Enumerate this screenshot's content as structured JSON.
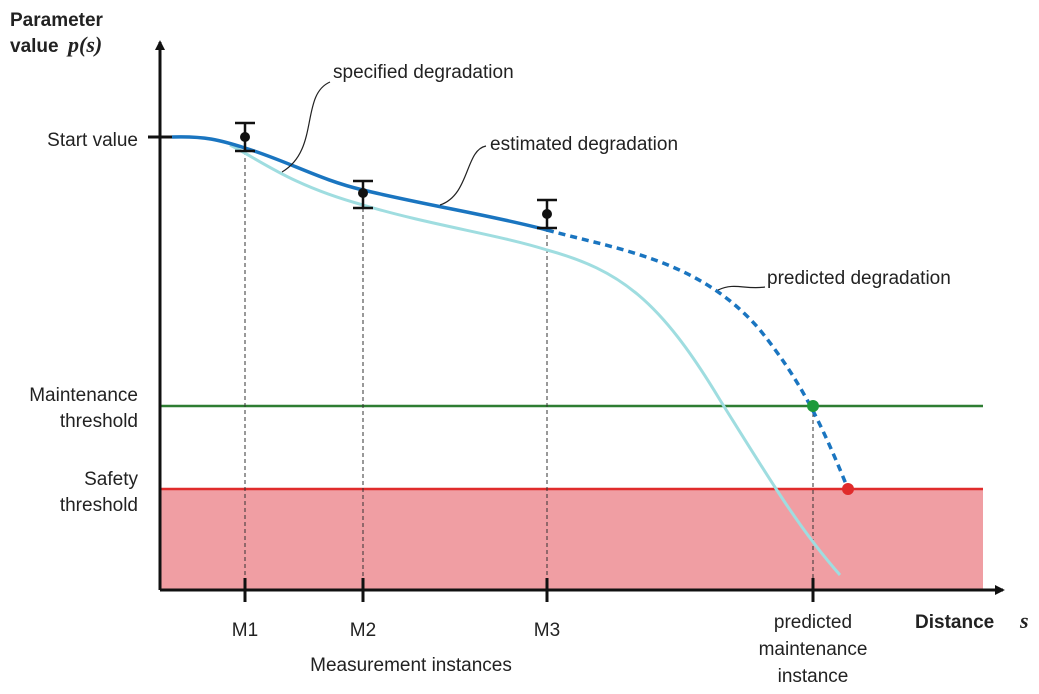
{
  "y_axis": {
    "title_lines": [
      "Parameter",
      "value"
    ],
    "symbol": "p(s)",
    "levels": {
      "start": "Start value",
      "maintenance": [
        "Maintenance",
        "threshold"
      ],
      "safety": [
        "Safety",
        "threshold"
      ]
    }
  },
  "x_axis": {
    "title": "Distance",
    "symbol": "s",
    "ticks": [
      "M1",
      "M2",
      "M3"
    ],
    "group_label": "Measurement instances",
    "predicted": [
      "predicted",
      "maintenance",
      "instance"
    ]
  },
  "curves": {
    "specified": "specified degradation",
    "estimated": "estimated degradation",
    "predicted": "predicted degradation"
  }
}
